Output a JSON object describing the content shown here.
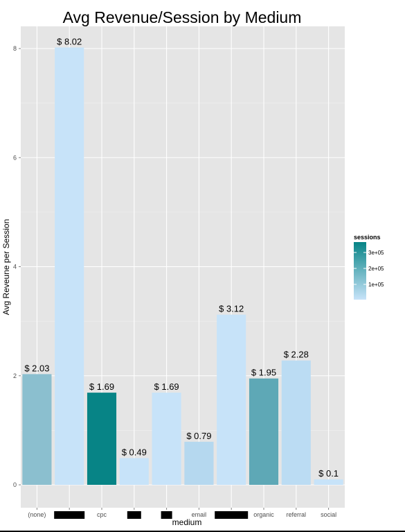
{
  "chart_data": {
    "type": "bar",
    "title": "Avg Revenue/Session by Medium",
    "xlabel": "medium",
    "ylabel": "Avg Reveune per Session",
    "ylim": [
      -0.4,
      8.5
    ],
    "yticks": [
      0,
      2,
      4,
      6,
      8
    ],
    "grid": true,
    "categories": [
      "(none)",
      "",
      "cpc",
      "",
      "",
      "email",
      "",
      "organic",
      "referral",
      "social"
    ],
    "redacted_categories": [
      1,
      3,
      4,
      6
    ],
    "values": [
      2.03,
      8.02,
      1.69,
      0.49,
      1.69,
      0.79,
      3.12,
      1.95,
      2.28,
      0.1
    ],
    "data_labels": [
      "$ 2.03",
      "$ 8.02",
      "$ 1.69",
      "$ 0.49",
      "$ 1.69",
      "$ 0.79",
      "$ 3.12",
      "$ 1.95",
      "$ 2.28",
      "$ 0.1"
    ],
    "bar_colors": [
      "#8bbfcf",
      "#c7e3f9",
      "#078486",
      "#c7e3f9",
      "#c7e3f9",
      "#b5d8ef",
      "#c7e3f9",
      "#5ea8b6",
      "#bbdcf3",
      "#c7e3f9"
    ],
    "legend": {
      "title": "sessions",
      "position": "right",
      "labels": [
        "3e+05",
        "2e+05",
        "1e+05"
      ],
      "color_low": "#c7e3f9",
      "color_high": "#078486"
    }
  }
}
